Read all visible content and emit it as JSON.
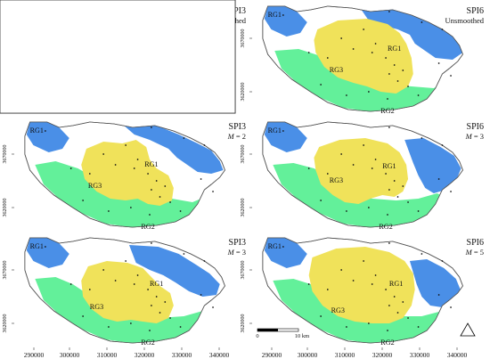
{
  "colors": {
    "RG1": "#4a8fe7",
    "RG2": "#63f09a",
    "RG3": "#f0e25a",
    "frame": "#333333",
    "station": "#111111"
  },
  "panels": [
    {
      "index": "SPI3",
      "italic_param": "",
      "eq_value": "Unsmoothed"
    },
    {
      "index": "SPI6",
      "italic_param": "",
      "eq_value": "Unsmoothed"
    },
    {
      "index": "SPI3",
      "italic_param": "M",
      "eq_value": " = 2"
    },
    {
      "index": "SPI6",
      "italic_param": "M",
      "eq_value": " = 3"
    },
    {
      "index": "SPI3",
      "italic_param": "M",
      "eq_value": " = 3"
    },
    {
      "index": "SPI6",
      "italic_param": "M",
      "eq_value": " = 5"
    }
  ],
  "region_labels": {
    "rg1": "RG1",
    "rg2": "RG2",
    "rg3": "RG3"
  },
  "y_ticks": [
    "3670000",
    "3620000"
  ],
  "x_ticks": [
    "290000",
    "300000",
    "310000",
    "320000",
    "330000",
    "340000"
  ],
  "scalebar": {
    "start": "0",
    "end": "10 km"
  },
  "north_arrow_icon": "north-arrow-triangle-icon"
}
